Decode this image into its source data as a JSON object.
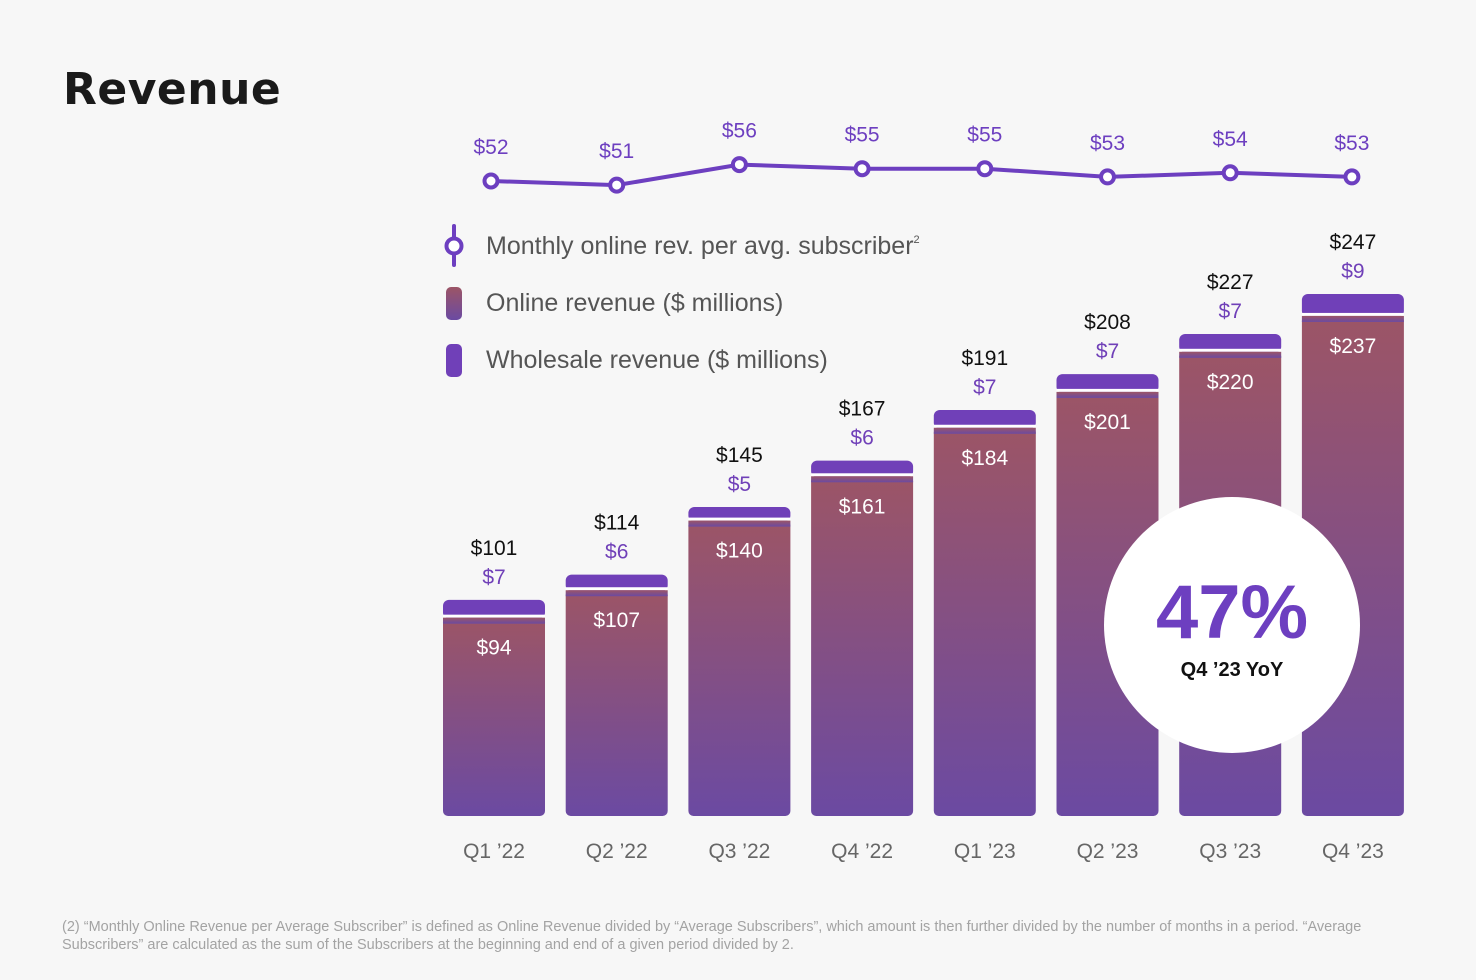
{
  "page": {
    "title": "Revenue",
    "footnote": "(2) “Monthly Online Revenue per Average Subscriber” is defined as Online Revenue divided by “Average Subscribers”, which amount is then further divided by the number of months in a period. “Average Subscribers” are calculated as the sum of the Subscribers at the beginning and end of a given period divided by 2."
  },
  "chart_data": {
    "type": "bar",
    "stacked": true,
    "categories": [
      "Q1 ’22",
      "Q2 ’22",
      "Q3 ’22",
      "Q4 ’22",
      "Q1 ’23",
      "Q2 ’23",
      "Q3 ’23",
      "Q4 ’23"
    ],
    "series": [
      {
        "name": "Online revenue ($ millions)",
        "values": [
          94,
          107,
          140,
          161,
          184,
          201,
          220,
          237
        ],
        "labels": [
          "$94",
          "$107",
          "$140",
          "$161",
          "$184",
          "$201",
          "$220",
          "$237"
        ],
        "color": "#9a5468"
      },
      {
        "name": "Wholesale revenue ($ millions)",
        "values": [
          7,
          6,
          5,
          6,
          7,
          7,
          7,
          9
        ],
        "labels": [
          "$7",
          "$6",
          "$5",
          "$6",
          "$7",
          "$7",
          "$7",
          "$9"
        ],
        "color": "#7040b8"
      }
    ],
    "totals": {
      "values": [
        101,
        114,
        145,
        167,
        191,
        208,
        227,
        247
      ],
      "labels": [
        "$101",
        "$114",
        "$145",
        "$167",
        "$191",
        "$208",
        "$227",
        "$247"
      ]
    },
    "line": {
      "name": "Monthly online rev. per avg. subscriber",
      "superscript": "2",
      "type": "line",
      "values": [
        52,
        51,
        56,
        55,
        55,
        53,
        54,
        53
      ],
      "labels": [
        "$52",
        "$51",
        "$56",
        "$55",
        "$55",
        "$53",
        "$54",
        "$53"
      ],
      "color": "#6d3fc0"
    },
    "callout": {
      "value": "47%",
      "label": "Q4 ’23 YoY"
    },
    "legend": "top-left of plot",
    "grid": false
  }
}
